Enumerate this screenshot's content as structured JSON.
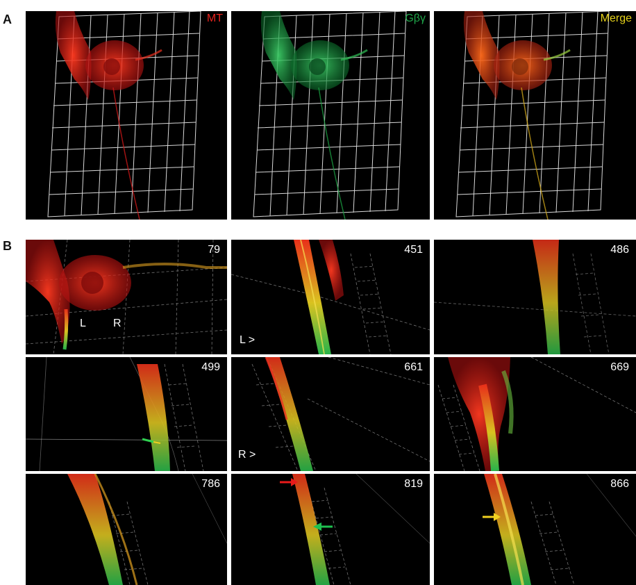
{
  "figure": {
    "section_a_letter": "A",
    "section_b_letter": "B"
  },
  "panels_a": [
    {
      "label": "MT",
      "label_color": "#e8231e"
    },
    {
      "label": "Gβγ",
      "label_color": "#1fa64a"
    },
    {
      "label": "Merge",
      "label_color": "#e6d21a"
    }
  ],
  "panels_b": [
    {
      "frame": "79"
    },
    {
      "frame": "451"
    },
    {
      "frame": "486"
    },
    {
      "frame": "499"
    },
    {
      "frame": "661"
    },
    {
      "frame": "669"
    },
    {
      "frame": "786"
    },
    {
      "frame": "819"
    },
    {
      "frame": "866"
    }
  ],
  "markers": {
    "left_neurite": "L",
    "right_neurite": "R",
    "left_pointer": "L >",
    "right_pointer": "R >"
  },
  "colors": {
    "microtubule": "#e8231e",
    "g_beta_gamma": "#1fa64a",
    "merge": "#e6d21a",
    "grid": "#ffffff",
    "background": "#000000"
  },
  "arrows": {
    "red_arrow": "red-arrow",
    "green_arrow": "green-arrow",
    "yellow_arrow": "yellow-arrow"
  }
}
